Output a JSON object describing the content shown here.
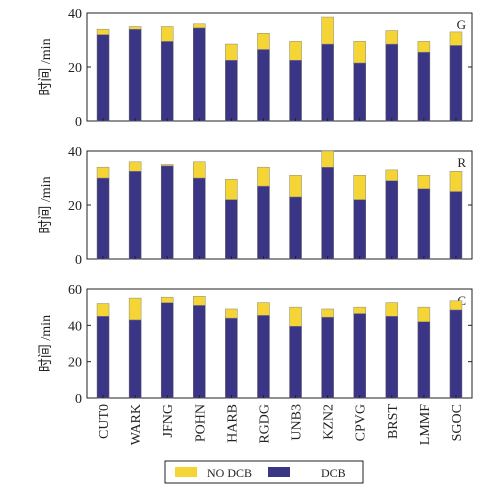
{
  "chart_data": [
    {
      "type": "bar",
      "stacked": true,
      "panel_label": "G",
      "ylabel": "时间 /min",
      "ylim": [
        0,
        40
      ],
      "yticks": [
        0,
        20,
        40
      ],
      "categories": [
        "CUT0",
        "WARK",
        "JFNG",
        "POHN",
        "HARB",
        "RGDG",
        "UNB3",
        "KZN2",
        "CPVG",
        "BRST",
        "LMMF",
        "SGOC"
      ],
      "series": [
        {
          "name": "DCB",
          "values": [
            32,
            34,
            29.5,
            34.5,
            22.5,
            26.5,
            22.5,
            28.5,
            21.5,
            28.5,
            25.5,
            28
          ]
        },
        {
          "name": "NO DCB",
          "values": [
            2,
            1,
            5.5,
            1.5,
            6,
            6,
            7,
            10,
            8,
            5,
            4,
            5
          ]
        }
      ]
    },
    {
      "type": "bar",
      "stacked": true,
      "panel_label": "R",
      "ylabel": "时间 /min",
      "ylim": [
        0,
        40
      ],
      "yticks": [
        0,
        20,
        40
      ],
      "categories": [
        "CUT0",
        "WARK",
        "JFNG",
        "POHN",
        "HARB",
        "RGDG",
        "UNB3",
        "KZN2",
        "CPVG",
        "BRST",
        "LMMF",
        "SGOC"
      ],
      "series": [
        {
          "name": "DCB",
          "values": [
            30,
            32.5,
            34.5,
            30,
            22,
            27,
            23,
            34,
            22,
            29,
            26,
            25
          ]
        },
        {
          "name": "NO DCB",
          "values": [
            4,
            3.5,
            0.5,
            6,
            7.5,
            7,
            8,
            6,
            9,
            4,
            5,
            7.5
          ]
        }
      ]
    },
    {
      "type": "bar",
      "stacked": true,
      "panel_label": "C",
      "ylabel": "时间 /min",
      "ylim": [
        0,
        60
      ],
      "yticks": [
        0,
        20,
        40,
        60
      ],
      "categories": [
        "CUT0",
        "WARK",
        "JFNG",
        "POHN",
        "HARB",
        "RGDG",
        "UNB3",
        "KZN2",
        "CPVG",
        "BRST",
        "LMMF",
        "SGOC"
      ],
      "series": [
        {
          "name": "DCB",
          "values": [
            45,
            43,
            52.5,
            51,
            44,
            45.5,
            39.5,
            44.5,
            46.5,
            45,
            42,
            48.5
          ]
        },
        {
          "name": "NO DCB",
          "values": [
            7,
            12,
            3,
            5,
            5,
            7,
            10.5,
            4.5,
            3.5,
            7.5,
            8,
            5
          ]
        }
      ]
    }
  ],
  "legend": {
    "position": "bottom-center",
    "entries": [
      {
        "label": "NO DCB",
        "color": "#f5d535"
      },
      {
        "label": "DCB",
        "color": "#3b3585"
      }
    ]
  }
}
